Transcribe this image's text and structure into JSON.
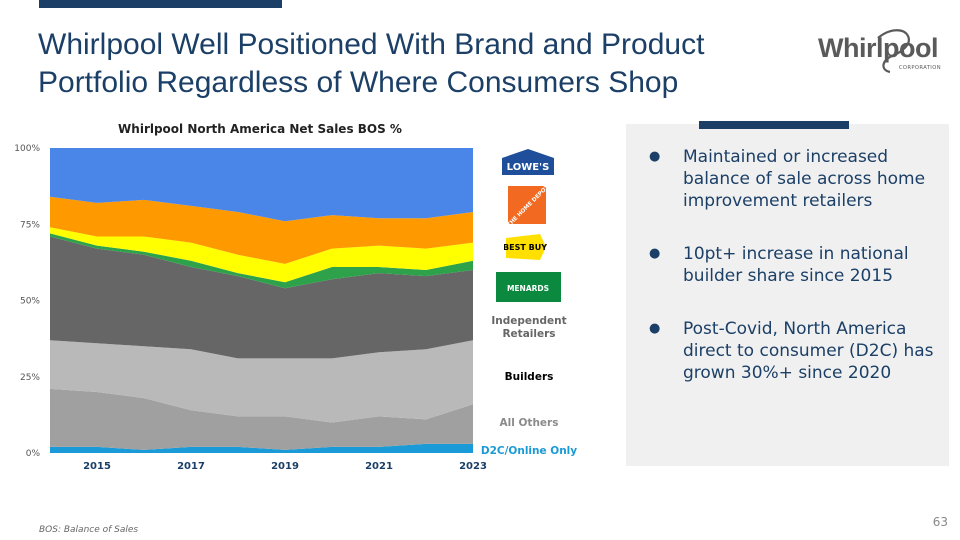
{
  "slide": {
    "title": "Whirlpool Well Positioned With Brand and Product Portfolio Regardless of Where Consumers Shop",
    "logo": {
      "name": "Whirlpool",
      "subtitle": "CORPORATION"
    },
    "page_number": "63",
    "footnote": "BOS: Balance of Sales"
  },
  "colors": {
    "navy": "#1b3f66",
    "d2c": "#1a9ad6",
    "all_others": "#a0a0a0",
    "builders": "#b9b9b9",
    "independent": "#666666",
    "menards": "#2ea24a",
    "best_buy": "#ffff00",
    "home_depot": "#ff9900",
    "lowes": "#4a86e8"
  },
  "legend": {
    "brands": [
      {
        "name": "lowes",
        "text": "LOWE'S"
      },
      {
        "name": "home-depot",
        "text": "THE HOME DEPOT"
      },
      {
        "name": "best-buy",
        "text": "BEST BUY"
      },
      {
        "name": "menards",
        "text": "MENARDS"
      }
    ],
    "independent": "Independent Retailers",
    "builders": "Builders",
    "all_others": "All Others",
    "d2c": "D2C/Online Only"
  },
  "panel": {
    "bullets": [
      "Maintained or increased balance of sale across home improvement retailers",
      "10pt+ increase in national builder share since 2015",
      "Post-Covid, North America direct to consumer (D2C) has grown 30%+ since 2020"
    ]
  },
  "chart_data": {
    "type": "area",
    "stacked": true,
    "title": "Whirlpool North America Net Sales BOS %",
    "x": [
      2014,
      2015,
      2016,
      2017,
      2018,
      2019,
      2020,
      2021,
      2022,
      2023
    ],
    "x_tick_labels": [
      "2015",
      "2017",
      "2019",
      "2021",
      "2023"
    ],
    "x_tick_values": [
      2015,
      2017,
      2019,
      2021,
      2023
    ],
    "y_tick_labels": [
      "100%",
      "75%",
      "50%",
      "25%",
      "0%"
    ],
    "y_tick_values": [
      100,
      75,
      50,
      25,
      0
    ],
    "ylim": [
      0,
      100
    ],
    "ylabel": "",
    "xlabel": "",
    "series": [
      {
        "name": "D2C/Online Only",
        "key": "d2c",
        "values": [
          2,
          2,
          1,
          2,
          2,
          1,
          2,
          2,
          3,
          3
        ]
      },
      {
        "name": "All Others",
        "key": "all_others",
        "values": [
          19,
          18,
          17,
          12,
          10,
          11,
          8,
          10,
          8,
          13
        ]
      },
      {
        "name": "Builders",
        "key": "builders",
        "values": [
          16,
          16,
          17,
          20,
          19,
          19,
          21,
          21,
          23,
          21
        ]
      },
      {
        "name": "Independent Retailers",
        "key": "independent",
        "values": [
          34,
          31,
          30,
          27,
          27,
          23,
          26,
          26,
          24,
          23
        ]
      },
      {
        "name": "Menards",
        "key": "menards",
        "values": [
          1,
          1,
          1,
          2,
          1,
          2,
          4,
          2,
          2,
          3
        ]
      },
      {
        "name": "Best Buy",
        "key": "best_buy",
        "values": [
          2,
          3,
          5,
          6,
          6,
          6,
          6,
          7,
          7,
          6
        ]
      },
      {
        "name": "The Home Depot",
        "key": "home_depot",
        "values": [
          10,
          11,
          12,
          12,
          14,
          14,
          11,
          9,
          10,
          10
        ]
      },
      {
        "name": "Lowe's",
        "key": "lowes",
        "values": [
          16,
          18,
          17,
          19,
          21,
          24,
          22,
          23,
          23,
          21
        ]
      }
    ]
  }
}
